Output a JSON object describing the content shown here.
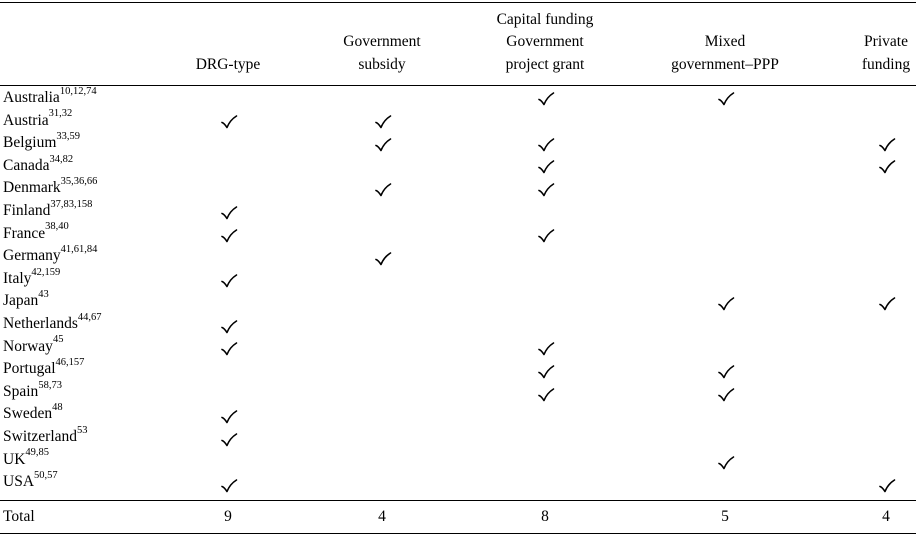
{
  "columns": [
    {
      "key": "drg",
      "lines": [
        "DRG-type"
      ]
    },
    {
      "key": "subsidy",
      "lines": [
        "Government",
        "subsidy"
      ]
    },
    {
      "key": "grant",
      "lines": [
        "Capital funding",
        "Government",
        "project grant"
      ]
    },
    {
      "key": "ppp",
      "lines": [
        "Mixed",
        "government–PPP"
      ]
    },
    {
      "key": "private",
      "lines": [
        "Private",
        "funding"
      ]
    }
  ],
  "rows": [
    {
      "country": "Australia",
      "refs": "10,12,74",
      "marks": [
        false,
        false,
        true,
        true,
        false
      ]
    },
    {
      "country": "Austria",
      "refs": "31,32",
      "marks": [
        true,
        true,
        false,
        false,
        false
      ]
    },
    {
      "country": "Belgium",
      "refs": "33,59",
      "marks": [
        false,
        true,
        true,
        false,
        true
      ]
    },
    {
      "country": "Canada",
      "refs": "34,82",
      "marks": [
        false,
        false,
        true,
        false,
        true
      ]
    },
    {
      "country": "Denmark",
      "refs": "35,36,66",
      "marks": [
        false,
        true,
        true,
        false,
        false
      ]
    },
    {
      "country": "Finland",
      "refs": "37,83,158",
      "marks": [
        true,
        false,
        false,
        false,
        false
      ]
    },
    {
      "country": "France",
      "refs": "38,40",
      "marks": [
        true,
        false,
        true,
        false,
        false
      ]
    },
    {
      "country": "Germany",
      "refs": "41,61,84",
      "marks": [
        false,
        true,
        false,
        false,
        false
      ]
    },
    {
      "country": "Italy",
      "refs": "42,159",
      "marks": [
        true,
        false,
        false,
        false,
        false
      ]
    },
    {
      "country": "Japan",
      "refs": "43",
      "marks": [
        false,
        false,
        false,
        true,
        true
      ]
    },
    {
      "country": "Netherlands",
      "refs": "44,67",
      "marks": [
        true,
        false,
        false,
        false,
        false
      ]
    },
    {
      "country": "Norway",
      "refs": "45",
      "marks": [
        true,
        false,
        true,
        false,
        false
      ]
    },
    {
      "country": "Portugal",
      "refs": "46,157",
      "marks": [
        false,
        false,
        true,
        true,
        false
      ]
    },
    {
      "country": "Spain",
      "refs": "58,73",
      "marks": [
        false,
        false,
        true,
        true,
        false
      ]
    },
    {
      "country": "Sweden",
      "refs": "48",
      "marks": [
        true,
        false,
        false,
        false,
        false
      ]
    },
    {
      "country": "Switzerland",
      "refs": "53",
      "marks": [
        true,
        false,
        false,
        false,
        false
      ]
    },
    {
      "country": "UK",
      "refs": "49,85",
      "marks": [
        false,
        false,
        false,
        true,
        false
      ]
    },
    {
      "country": "USA",
      "refs": "50,57",
      "marks": [
        true,
        false,
        false,
        false,
        true
      ]
    }
  ],
  "total": {
    "label": "Total",
    "values": [
      "9",
      "4",
      "8",
      "5",
      "4"
    ]
  },
  "check_icon": "check-mark-icon"
}
